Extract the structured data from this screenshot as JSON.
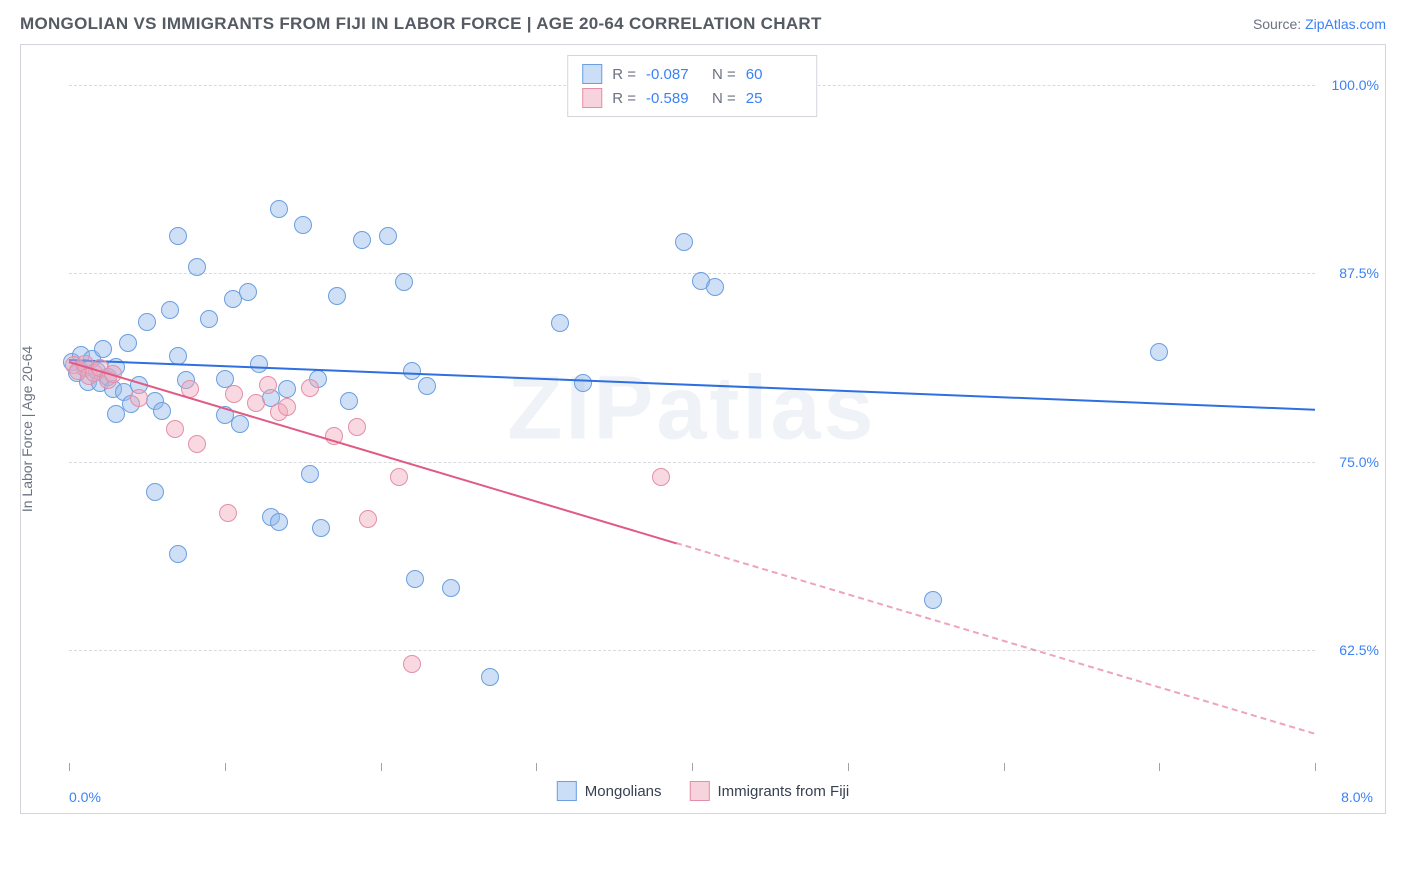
{
  "header": {
    "title": "MONGOLIAN VS IMMIGRANTS FROM FIJI IN LABOR FORCE | AGE 20-64 CORRELATION CHART",
    "source_prefix": "Source: ",
    "source_link": "ZipAtlas.com"
  },
  "chart": {
    "type": "scatter",
    "ylabel": "In Labor Force | Age 20-64",
    "watermark": "ZIPatlas",
    "xlim": [
      0.0,
      8.0
    ],
    "ylim": [
      55.0,
      102.0
    ],
    "xtick_positions": [
      0.0,
      1.0,
      2.0,
      3.0,
      4.0,
      5.0,
      6.0,
      7.0,
      8.0
    ],
    "xaxis_labels": {
      "left": "0.0%",
      "right": "8.0%"
    },
    "yticks": [
      {
        "value": 62.5,
        "label": "62.5%"
      },
      {
        "value": 75.0,
        "label": "75.0%"
      },
      {
        "value": 87.5,
        "label": "87.5%"
      },
      {
        "value": 100.0,
        "label": "100.0%"
      }
    ],
    "grid_color": "#d6dbe1",
    "background_color": "#ffffff",
    "border_color": "#d1d5db",
    "series": [
      {
        "name": "Mongolians",
        "label": "Mongolians",
        "fill": "rgba(147, 183, 236, 0.45)",
        "stroke": "#6b9fe0",
        "swatch_fill": "#cadef7",
        "swatch_border": "#6b9fe0",
        "marker_radius": 9,
        "R": "-0.087",
        "N": "60",
        "regression": {
          "x1": 0.0,
          "y1": 81.8,
          "x2": 8.0,
          "y2": 78.5,
          "solid_until_x": 8.0,
          "color": "#2f6fe0",
          "width": 2.2
        },
        "points": [
          [
            0.02,
            81.6
          ],
          [
            0.05,
            80.9
          ],
          [
            0.08,
            82.1
          ],
          [
            0.1,
            81.2
          ],
          [
            0.12,
            80.3
          ],
          [
            0.15,
            81.8
          ],
          [
            0.18,
            81.0
          ],
          [
            0.2,
            80.2
          ],
          [
            0.22,
            82.5
          ],
          [
            0.25,
            80.6
          ],
          [
            0.28,
            79.8
          ],
          [
            0.3,
            81.3
          ],
          [
            0.35,
            79.6
          ],
          [
            0.38,
            82.9
          ],
          [
            0.3,
            78.2
          ],
          [
            0.4,
            78.8
          ],
          [
            0.45,
            80.1
          ],
          [
            0.5,
            84.3
          ],
          [
            0.55,
            79.0
          ],
          [
            0.6,
            78.4
          ],
          [
            0.55,
            73.0
          ],
          [
            0.7,
            82.0
          ],
          [
            0.65,
            85.1
          ],
          [
            0.7,
            90.0
          ],
          [
            0.75,
            80.4
          ],
          [
            0.7,
            68.9
          ],
          [
            0.82,
            87.9
          ],
          [
            0.9,
            84.5
          ],
          [
            1.0,
            80.5
          ],
          [
            1.0,
            78.1
          ],
          [
            1.05,
            85.8
          ],
          [
            1.1,
            77.5
          ],
          [
            1.15,
            86.3
          ],
          [
            1.22,
            81.5
          ],
          [
            1.3,
            71.3
          ],
          [
            1.3,
            79.2
          ],
          [
            1.35,
            91.8
          ],
          [
            1.4,
            79.8
          ],
          [
            1.35,
            71.0
          ],
          [
            1.5,
            90.7
          ],
          [
            1.55,
            74.2
          ],
          [
            1.6,
            80.5
          ],
          [
            1.62,
            70.6
          ],
          [
            1.72,
            86.0
          ],
          [
            1.8,
            79.0
          ],
          [
            1.88,
            89.7
          ],
          [
            2.05,
            90.0
          ],
          [
            2.15,
            86.9
          ],
          [
            2.2,
            81.0
          ],
          [
            2.22,
            67.2
          ],
          [
            2.3,
            80.0
          ],
          [
            2.45,
            66.6
          ],
          [
            2.7,
            60.7
          ],
          [
            3.15,
            84.2
          ],
          [
            3.3,
            80.2
          ],
          [
            3.95,
            89.6
          ],
          [
            4.06,
            87.0
          ],
          [
            4.15,
            86.6
          ],
          [
            5.55,
            65.8
          ],
          [
            7.0,
            82.3
          ]
        ]
      },
      {
        "name": "Immigrants from Fiji",
        "label": "Immigrants from Fiji",
        "fill": "rgba(240, 168, 188, 0.45)",
        "stroke": "#e48fa8",
        "swatch_fill": "#f7d3dd",
        "swatch_border": "#e48fa8",
        "marker_radius": 9,
        "R": "-0.589",
        "N": "25",
        "regression": {
          "x1": 0.0,
          "y1": 81.7,
          "x2": 8.0,
          "y2": 57.0,
          "solid_until_x": 3.9,
          "color": "#e05a86",
          "width": 2.0
        },
        "points": [
          [
            0.03,
            81.4
          ],
          [
            0.06,
            81.0
          ],
          [
            0.1,
            81.5
          ],
          [
            0.13,
            80.7
          ],
          [
            0.16,
            80.9
          ],
          [
            0.2,
            81.2
          ],
          [
            0.25,
            80.4
          ],
          [
            0.28,
            80.8
          ],
          [
            0.45,
            79.2
          ],
          [
            0.68,
            77.2
          ],
          [
            0.78,
            79.8
          ],
          [
            0.82,
            76.2
          ],
          [
            1.02,
            71.6
          ],
          [
            1.06,
            79.5
          ],
          [
            1.2,
            78.9
          ],
          [
            1.28,
            80.1
          ],
          [
            1.35,
            78.3
          ],
          [
            1.4,
            78.6
          ],
          [
            1.55,
            79.9
          ],
          [
            1.7,
            76.7
          ],
          [
            1.85,
            77.3
          ],
          [
            1.92,
            71.2
          ],
          [
            2.12,
            74.0
          ],
          [
            2.2,
            61.6
          ],
          [
            3.8,
            74.0
          ]
        ]
      }
    ],
    "legend_top": {
      "r_label": "R =",
      "n_label": "N ="
    }
  }
}
